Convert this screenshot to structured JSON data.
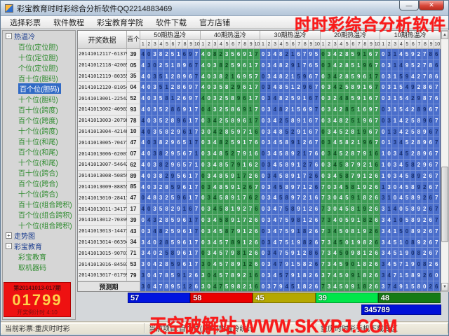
{
  "window": {
    "title": "彩宝教育时时彩综合分析软件QQ2214883469",
    "minimize_glyph": "—",
    "close_glyph": "✕"
  },
  "menu": {
    "items": [
      "选择彩票",
      "软件教程",
      "彩宝教育学院",
      "软件下载",
      "官方店铺"
    ]
  },
  "watermarks": {
    "top": "时时彩综合分析软件",
    "bottom": "天空破解站 WWW.SKYPJ.COM"
  },
  "sidebar": {
    "tree": [
      {
        "label": "热温冷",
        "level": 0,
        "expand": "-"
      },
      {
        "label": "百位(定位胆)",
        "level": 1
      },
      {
        "label": "十位(定位胆)",
        "level": 1
      },
      {
        "label": "个位(定位胆)",
        "level": 1
      },
      {
        "label": "百十位(胆码)",
        "level": 1
      },
      {
        "label": "百个位(胆码)",
        "level": 1,
        "selected": true
      },
      {
        "label": "十个位(胆码)",
        "level": 1
      },
      {
        "label": "百十位(跨度)",
        "level": 1
      },
      {
        "label": "百个位(跨度)",
        "level": 1
      },
      {
        "label": "十个位(跨度)",
        "level": 1
      },
      {
        "label": "百十位(和尾)",
        "level": 1
      },
      {
        "label": "百个位(和尾)",
        "level": 1
      },
      {
        "label": "十个位(和尾)",
        "level": 1
      },
      {
        "label": "百十位(跨合)",
        "level": 1
      },
      {
        "label": "百个位(跨合)",
        "level": 1
      },
      {
        "label": "十个位(跨合)",
        "level": 1
      },
      {
        "label": "百十位(组合跨积)",
        "level": 1
      },
      {
        "label": "百个位(组合跨积)",
        "level": 1
      },
      {
        "label": "十个位(组合跨积)",
        "level": 1
      },
      {
        "label": "走势图",
        "level": 0,
        "expand": "+"
      },
      {
        "label": "彩宝教育",
        "level": 0,
        "expand": "-"
      },
      {
        "label": "彩宝教育",
        "level": 1
      },
      {
        "label": "取机器码",
        "level": 1
      }
    ]
  },
  "table": {
    "corner_label": "开奖数据",
    "digit_col_label": "百个",
    "subcols": [
      "1",
      "2",
      "3",
      "4",
      "5",
      "6",
      "7",
      "8",
      "9",
      "10"
    ],
    "groups": [
      {
        "title": "50期热温冷",
        "color": "#4a6ecb",
        "dark": "#182f6e"
      },
      {
        "title": "40期热温冷",
        "color": "#3d9c55",
        "dark": "#0c4a1e"
      },
      {
        "title": "30期热温冷",
        "color": "#4a6ecb",
        "dark": "#182f6e"
      },
      {
        "title": "20期热温冷",
        "color": "#3d9c55",
        "dark": "#0c4a1e"
      },
      {
        "title": "10期热温冷",
        "color": "#4a6ecb",
        "dark": "#182f6e"
      }
    ],
    "rows": [
      {
        "id": "20141012117-61379",
        "val": "39",
        "cells": [
          "4038251697",
          "4082356917",
          "0348216795",
          "0342859167",
          "0314592786"
        ]
      },
      {
        "id": "20141012118-42005",
        "val": "05",
        "cells": [
          "4302518967",
          "4038259617",
          "0348291765",
          "0342851967",
          "0314952786"
        ]
      },
      {
        "id": "20141012119-80355",
        "val": "35",
        "cells": [
          "4035128967",
          "4038216957",
          "0348215967",
          "0342859617",
          "0315942786"
        ]
      },
      {
        "id": "20141012120-81054",
        "val": "04",
        "cells": [
          "4035128697",
          "4035829617",
          "0348512967",
          "0342589167",
          "0315492867"
        ]
      },
      {
        "id": "20141013001-22542",
        "val": "52",
        "cells": [
          "4035812697",
          "4032589617",
          "0348259167",
          "0324859167",
          "0315429876"
        ]
      },
      {
        "id": "20141013002-40983",
        "val": "93",
        "cells": [
          "4035286917",
          "0432586917",
          "0348215697",
          "0342851697",
          "0315428967"
        ]
      },
      {
        "id": "20141013003-20798",
        "val": "78",
        "cells": [
          "4035289617",
          "0342589617",
          "0342589167",
          "0348251967",
          "0314258967"
        ]
      },
      {
        "id": "20141013004-42140",
        "val": "10",
        "cells": [
          "4035829617",
          "3042859716",
          "0348529167",
          "0345281967",
          "0134258967"
        ]
      },
      {
        "id": "20141013005-70477",
        "val": "47",
        "cells": [
          "4038296517",
          "0348259176",
          "0345891267",
          "0345821967",
          "0134528967"
        ]
      },
      {
        "id": "20141013006-62007",
        "val": "07",
        "cells": [
          "4038295671",
          "0348527916",
          "0345892176",
          "0345287916",
          "1034528967"
        ]
      },
      {
        "id": "20141013007-54642",
        "val": "62",
        "cells": [
          "4038296571",
          "0348579162",
          "0345891276",
          "0345879216",
          "1034582967"
        ]
      },
      {
        "id": "20141013008-50859",
        "val": "89",
        "cells": [
          "4038295617",
          "0348591726",
          "0345891726",
          "0345879126",
          "1034589267"
        ]
      },
      {
        "id": "20141013009-88855",
        "val": "85",
        "cells": [
          "4032859617",
          "0348591267",
          "0345897126",
          "7034581926",
          "1304589267"
        ]
      },
      {
        "id": "20141013010-28417",
        "val": "47",
        "cells": [
          "0483259617",
          "0345891762",
          "0345897216",
          "7304591826",
          "3104589267"
        ]
      },
      {
        "id": "20141013011-34177",
        "val": "17",
        "cells": [
          "4035829167",
          "0345819276",
          "0347589126",
          "7304581926",
          "3140589267"
        ]
      },
      {
        "id": "20141013012-70399",
        "val": "39",
        "cells": [
          "0432859617",
          "0345891726",
          "0347598126",
          "7340591826",
          "3410589267"
        ]
      },
      {
        "id": "20141013013-14473",
        "val": "43",
        "cells": [
          "0348259617",
          "0345879126",
          "0347591826",
          "7345081926",
          "3415089267"
        ]
      },
      {
        "id": "20141013014-06394",
        "val": "34",
        "cells": [
          "3402859617",
          "0345789126",
          "0347519826",
          "7345019826",
          "3451089267"
        ]
      },
      {
        "id": "20141013015-90701",
        "val": "71",
        "cells": [
          "3402589617",
          "0345798126",
          "0347591286",
          "7345098126",
          "3451908267"
        ]
      },
      {
        "id": "20141013016-84503",
        "val": "53",
        "cells": [
          "3042859617",
          "3045789126",
          "0347915826",
          "7345901826",
          "3457190826"
        ]
      },
      {
        "id": "20141013017-01799",
        "val": "79",
        "cells": [
          "3047859126",
          "3045789216",
          "0345791826",
          "3745091826",
          "3471589260"
        ]
      }
    ],
    "predict_row": {
      "label": "预测期",
      "cells": [
        "3047895126",
        "3047598216",
        "0379451826",
        "7345091826",
        "3749158026"
      ]
    }
  },
  "bars": {
    "items": [
      {
        "label": "57",
        "color": "#0014e0"
      },
      {
        "label": "58",
        "color": "#ea0000"
      },
      {
        "label": "45",
        "color": "#b5a800"
      },
      {
        "label": "39",
        "color": "#00e64a"
      },
      {
        "label": "48",
        "color": "#157a15"
      }
    ],
    "result": {
      "label": "345789",
      "color": "#0010d8"
    }
  },
  "info_box": {
    "period": "第20141013-017期",
    "number": "01799",
    "countdown": "开奖倒计时 4:10"
  },
  "status": {
    "left": "当前彩票:重庆时时彩",
    "center": "当前项目:百个位(胆码)热温冷统计",
    "right": "重庆时时彩手机下载专区"
  },
  "scrollbar": {
    "up": "▲",
    "down": "▼"
  }
}
